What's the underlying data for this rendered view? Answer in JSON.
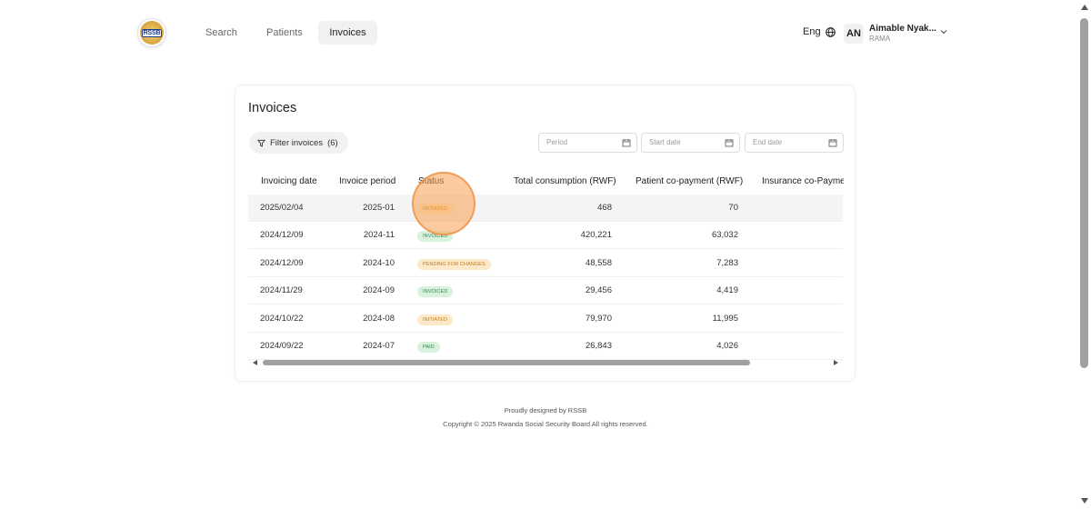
{
  "header": {
    "logo_text": "RSSB",
    "nav": [
      {
        "label": "Search"
      },
      {
        "label": "Patients"
      },
      {
        "label": "Invoices"
      }
    ],
    "language": "Eng",
    "user": {
      "initials": "AN",
      "name": "Aimable Nyak...",
      "org": "RAMA"
    }
  },
  "invoices": {
    "title": "Invoices",
    "filter_label": "Filter invoices",
    "filter_count": "(6)",
    "period_placeholder": "Period",
    "start_placeholder": "Start date",
    "end_placeholder": "End date",
    "columns": [
      "Invoicing date",
      "Invoice period",
      "Status",
      "Total consumption (RWF)",
      "Patient co-payment (RWF)",
      "Insurance co-Paymen"
    ],
    "rows": [
      {
        "date": "2025/02/04",
        "period": "2025-01",
        "status": "INITIATED",
        "total": "468",
        "copay": "70"
      },
      {
        "date": "2024/12/09",
        "period": "2024-11",
        "status": "INVOICED",
        "total": "420,221",
        "copay": "63,032"
      },
      {
        "date": "2024/12/09",
        "period": "2024-10",
        "status": "PENDING FOR CHANGES",
        "total": "48,558",
        "copay": "7,283"
      },
      {
        "date": "2024/11/29",
        "period": "2024-09",
        "status": "INVOICED",
        "total": "29,456",
        "copay": "4,419"
      },
      {
        "date": "2024/10/22",
        "period": "2024-08",
        "status": "INITIATED",
        "total": "79,970",
        "copay": "11,995"
      },
      {
        "date": "2024/09/22",
        "period": "2024-07",
        "status": "PAID",
        "total": "26,843",
        "copay": "4,026"
      }
    ]
  },
  "footer": {
    "line1": "Proudly designed by RSSB",
    "line2": "Copyright © 2025 Rwanda Social Security Board All rights reserved."
  },
  "colors": {
    "initiated": "#c07a1b",
    "invoiced": "#2d8a45",
    "highlight_row": "#f4f4f4",
    "click_indicator": "#f7a050"
  }
}
